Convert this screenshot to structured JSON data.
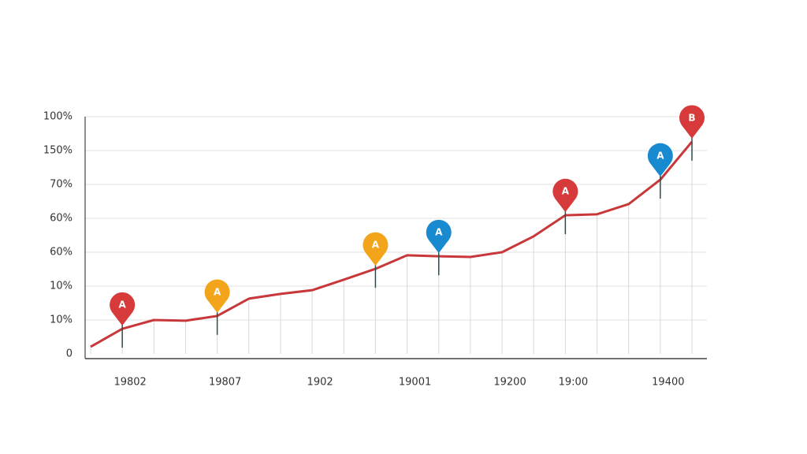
{
  "chart_data": {
    "type": "line",
    "categories": [
      null,
      "19802",
      null,
      null,
      "19807",
      null,
      null,
      "1902",
      null,
      null,
      "19001",
      null,
      null,
      "19200",
      null,
      "19:00",
      null,
      null,
      "19400",
      null
    ],
    "series": [
      {
        "color": "#c8383a",
        "values": [
          0.21,
          0.74,
          1.0,
          0.98,
          1.12,
          1.63,
          1.77,
          1.88,
          2.19,
          2.51,
          2.91,
          2.88,
          2.86,
          3.0,
          3.47,
          4.09,
          4.12,
          4.42,
          5.14,
          6.26
        ]
      }
    ],
    "ylim": [
      0,
      7
    ],
    "yticks": [
      {
        "value": 0,
        "label": "0"
      },
      {
        "value": 1,
        "label": "10%"
      },
      {
        "value": 2,
        "label": "10%"
      },
      {
        "value": 3,
        "label": "60%"
      },
      {
        "value": 4,
        "label": "60%"
      },
      {
        "value": 5,
        "label": "70%"
      },
      {
        "value": 6,
        "label": "150%"
      },
      {
        "value": 7,
        "label": "100%"
      }
    ],
    "grid": true,
    "annotations": [
      {
        "text": "A",
        "color": "#d63a3a",
        "index": 1
      },
      {
        "text": "A",
        "color": "#f2a51a",
        "index": 4
      },
      {
        "text": "A",
        "color": "#f2a51a",
        "index": 9
      },
      {
        "text": "A",
        "color": "#1a8ad0",
        "index": 11
      },
      {
        "text": "A",
        "color": "#d63a3a",
        "index": 15
      },
      {
        "text": "A",
        "color": "#1a8ad0",
        "index": 18
      },
      {
        "text": "B",
        "color": "#d63a3a",
        "index": 19
      }
    ]
  }
}
